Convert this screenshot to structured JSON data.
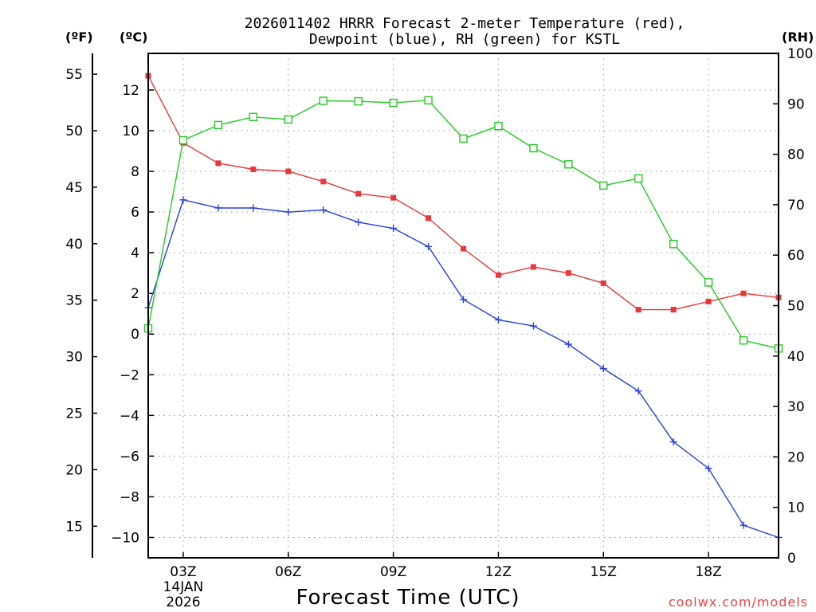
{
  "chart_data": {
    "type": "line",
    "title_line1": "2026011402 HRRR Forecast 2-meter Temperature (red),",
    "title_line2": "Dewpoint (blue), RH (green) for KSTL",
    "xlabel": "Forecast Time (UTC)",
    "credit": "coolwx.com/models",
    "credit_color": "#e8454a",
    "units": {
      "fahrenheit": "(ºF)",
      "celsius": "(ºC)",
      "rh": "(RH)"
    },
    "x_hours": [
      2,
      3,
      4,
      5,
      6,
      7,
      8,
      9,
      10,
      11,
      12,
      13,
      14,
      15,
      16,
      17,
      18,
      19,
      20
    ],
    "x_range": [
      2,
      20
    ],
    "x_ticks": [
      {
        "hour": 3,
        "label": "03Z",
        "date": "14JAN",
        "year": "2026"
      },
      {
        "hour": 6,
        "label": "06Z"
      },
      {
        "hour": 9,
        "label": "09Z"
      },
      {
        "hour": 12,
        "label": "12Z"
      },
      {
        "hour": 15,
        "label": "15Z"
      },
      {
        "hour": 18,
        "label": "18Z"
      }
    ],
    "y_celsius": {
      "range": [
        -11,
        13.8
      ],
      "ticks": [
        12,
        10,
        8,
        6,
        4,
        2,
        0,
        -2,
        -4,
        -6,
        -8,
        -10
      ],
      "tick_labels": [
        "12",
        "10",
        "8",
        "6",
        "4",
        "2",
        "0",
        "−2",
        "−4",
        "−6",
        "−8",
        "−10"
      ]
    },
    "y_fahrenheit": {
      "ticks": [
        55,
        50,
        45,
        40,
        35,
        30,
        25,
        20,
        15
      ],
      "tick_labels": [
        "55",
        "50",
        "45",
        "40",
        "35",
        "30",
        "25",
        "20",
        "15"
      ]
    },
    "y_rh": {
      "range": [
        0,
        100
      ],
      "ticks": [
        0,
        10,
        20,
        30,
        40,
        50,
        60,
        70,
        80,
        90,
        100
      ],
      "tick_labels": [
        "0",
        "10",
        "20",
        "30",
        "40",
        "50",
        "60",
        "70",
        "80",
        "90",
        "100"
      ]
    },
    "series": [
      {
        "name": "2-meter Temperature",
        "unit": "C",
        "axis": "celsius",
        "color": "#e8383c",
        "marker": "filled-square",
        "values": [
          12.7,
          9.4,
          8.4,
          8.1,
          8.0,
          7.5,
          6.9,
          6.7,
          5.7,
          4.2,
          2.9,
          3.3,
          3.0,
          2.5,
          1.2,
          1.2,
          1.6,
          2.0,
          1.8
        ]
      },
      {
        "name": "Dewpoint",
        "unit": "C",
        "axis": "celsius",
        "color": "#2a3fe0",
        "marker": "plus",
        "values": [
          1.3,
          6.6,
          6.2,
          6.2,
          6.0,
          6.1,
          5.5,
          5.2,
          4.3,
          1.7,
          0.7,
          0.4,
          -0.5,
          -1.7,
          -2.8,
          -5.3,
          -6.6,
          -9.4,
          -10.0
        ]
      },
      {
        "name": "RH",
        "unit": "%",
        "axis": "rh",
        "color": "#22cc22",
        "marker": "open-square",
        "values": [
          45.5,
          82.8,
          85.8,
          87.4,
          86.9,
          90.6,
          90.5,
          90.2,
          90.7,
          83.1,
          85.6,
          81.2,
          78.0,
          73.8,
          75.2,
          62.2,
          54.6,
          43.1,
          41.5
        ]
      }
    ]
  }
}
